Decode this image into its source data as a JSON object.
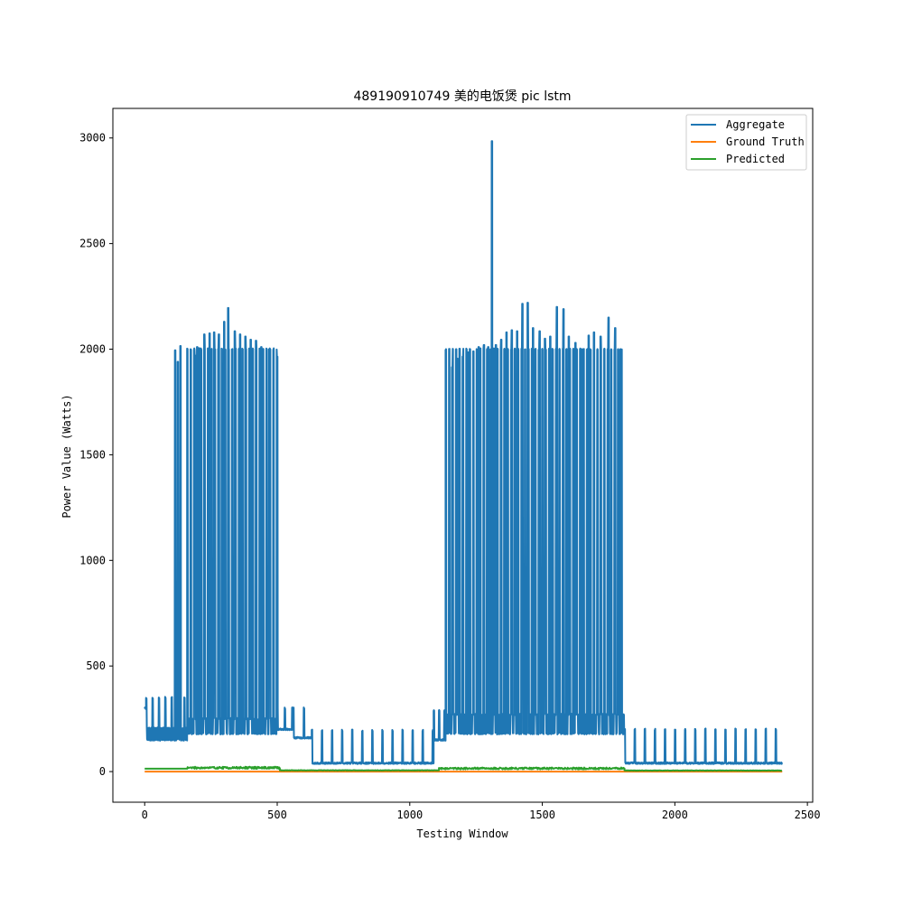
{
  "chart_data": {
    "type": "line",
    "title": "489190910749 美的电饭煲 pic lstm",
    "xlabel": "Testing Window",
    "ylabel": "Power Value (Watts)",
    "xlim": [
      -120,
      2520
    ],
    "ylim": [
      -145,
      3140
    ],
    "xticks": [
      0,
      500,
      1000,
      1500,
      2000,
      2500
    ],
    "yticks": [
      0,
      500,
      1000,
      1500,
      2000,
      2500,
      3000
    ],
    "legend_position": "upper right",
    "grid": false,
    "series": [
      {
        "name": "Aggregate",
        "color": "#1f77b4",
        "segments": [
          {
            "start": 0,
            "end": 5,
            "base": 300
          },
          {
            "start": 5,
            "end": 160,
            "base": 150,
            "alt_base": 205,
            "spike_every": 24,
            "spike_width": 3,
            "spike_value": 350
          },
          {
            "start": 160,
            "end": 500,
            "base": 180,
            "alt_base": 250,
            "spike_every": 13,
            "spike_width": 3,
            "spike_value": 2000
          },
          {
            "start": 500,
            "end": 560,
            "base": 200,
            "spike_every": 28,
            "spike_width": 3,
            "spike_value": 300
          },
          {
            "start": 560,
            "end": 630,
            "base": 160,
            "spike_every": 40,
            "spike_width": 3,
            "spike_value": 300
          },
          {
            "start": 630,
            "end": 1090,
            "base": 40,
            "spike_every": 38,
            "spike_width": 3,
            "spike_value": 195
          },
          {
            "start": 1090,
            "end": 1135,
            "base": 150,
            "spike_every": 20,
            "spike_width": 3,
            "spike_value": 290
          },
          {
            "start": 1135,
            "end": 1810,
            "base": 180,
            "alt_base": 270,
            "spike_every": 13,
            "spike_width": 3,
            "spike_value": 2000
          },
          {
            "start": 1810,
            "end": 2405,
            "base": 40,
            "spike_every": 38,
            "spike_width": 3,
            "spike_value": 200
          }
        ],
        "peaks": [
          {
            "x": 115,
            "y": 1995
          },
          {
            "x": 125,
            "y": 1940
          },
          {
            "x": 135,
            "y": 2015
          },
          {
            "x": 190,
            "y": 1970
          },
          {
            "x": 198,
            "y": 2010
          },
          {
            "x": 205,
            "y": 2005
          },
          {
            "x": 225,
            "y": 2070
          },
          {
            "x": 245,
            "y": 2075
          },
          {
            "x": 262,
            "y": 2080
          },
          {
            "x": 280,
            "y": 2070
          },
          {
            "x": 300,
            "y": 2130
          },
          {
            "x": 315,
            "y": 2195
          },
          {
            "x": 340,
            "y": 2085
          },
          {
            "x": 360,
            "y": 2070
          },
          {
            "x": 380,
            "y": 2060
          },
          {
            "x": 400,
            "y": 2045
          },
          {
            "x": 420,
            "y": 2040
          },
          {
            "x": 440,
            "y": 2010
          },
          {
            "x": 470,
            "y": 2000
          },
          {
            "x": 500,
            "y": 1965
          },
          {
            "x": 1160,
            "y": 1915
          },
          {
            "x": 1180,
            "y": 1955
          },
          {
            "x": 1200,
            "y": 1965
          },
          {
            "x": 1220,
            "y": 1985
          },
          {
            "x": 1240,
            "y": 1990
          },
          {
            "x": 1260,
            "y": 2010
          },
          {
            "x": 1280,
            "y": 2020
          },
          {
            "x": 1296,
            "y": 2010
          },
          {
            "x": 1310,
            "y": 2985
          },
          {
            "x": 1325,
            "y": 2020
          },
          {
            "x": 1345,
            "y": 2045
          },
          {
            "x": 1365,
            "y": 2080
          },
          {
            "x": 1385,
            "y": 2090
          },
          {
            "x": 1405,
            "y": 2085
          },
          {
            "x": 1425,
            "y": 2215
          },
          {
            "x": 1445,
            "y": 2220
          },
          {
            "x": 1465,
            "y": 2100
          },
          {
            "x": 1490,
            "y": 2085
          },
          {
            "x": 1510,
            "y": 2050
          },
          {
            "x": 1530,
            "y": 2060
          },
          {
            "x": 1555,
            "y": 2200
          },
          {
            "x": 1580,
            "y": 2190
          },
          {
            "x": 1600,
            "y": 2060
          },
          {
            "x": 1625,
            "y": 2030
          },
          {
            "x": 1650,
            "y": 2000
          },
          {
            "x": 1675,
            "y": 2065
          },
          {
            "x": 1695,
            "y": 2080
          },
          {
            "x": 1720,
            "y": 2060
          },
          {
            "x": 1750,
            "y": 2150
          },
          {
            "x": 1775,
            "y": 2100
          },
          {
            "x": 1795,
            "y": 2000
          }
        ]
      },
      {
        "name": "Ground Truth",
        "color": "#ff7f0e",
        "constant": 0
      },
      {
        "name": "Predicted",
        "color": "#2ca02c",
        "segments": [
          {
            "start": 0,
            "end": 160,
            "level": 14
          },
          {
            "start": 160,
            "end": 510,
            "level": 18,
            "noise": 10
          },
          {
            "start": 510,
            "end": 1110,
            "level": 6,
            "noise": 2
          },
          {
            "start": 1110,
            "end": 1810,
            "level": 15,
            "noise": 9
          },
          {
            "start": 1810,
            "end": 2405,
            "level": 5,
            "noise": 2
          }
        ]
      }
    ]
  }
}
